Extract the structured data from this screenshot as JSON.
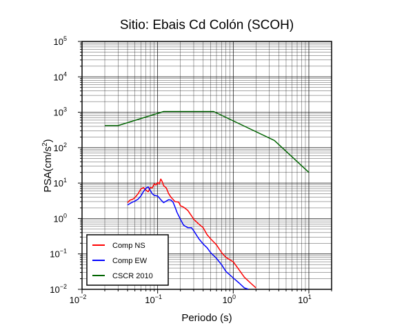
{
  "chart_data": {
    "type": "line",
    "title": "Sitio: Ebais Cd Colón (SCOH)",
    "xlabel": "Periodo (s)",
    "ylabel_base": "PSA(cm/s",
    "ylabel_sup": "2",
    "ylabel_end": ")",
    "xscale": "log",
    "yscale": "log",
    "xlim": [
      0.01,
      20
    ],
    "ylim": [
      0.01,
      100000
    ],
    "grid": true,
    "legend_position": "bottom-left",
    "x_ticks": [
      {
        "base": "10",
        "exp": "−2"
      },
      {
        "base": "10",
        "exp": "−1"
      },
      {
        "base": "10",
        "exp": "0"
      },
      {
        "base": "10",
        "exp": "1"
      }
    ],
    "y_ticks": [
      {
        "base": "10",
        "exp": "−2"
      },
      {
        "base": "10",
        "exp": "−1"
      },
      {
        "base": "10",
        "exp": "0"
      },
      {
        "base": "10",
        "exp": "1"
      },
      {
        "base": "10",
        "exp": "2"
      },
      {
        "base": "10",
        "exp": "3"
      },
      {
        "base": "10",
        "exp": "4"
      },
      {
        "base": "10",
        "exp": "5"
      }
    ],
    "series": [
      {
        "name": "Comp NS",
        "color": "#ff0000",
        "x": [
          0.04,
          0.043,
          0.047,
          0.05,
          0.055,
          0.06,
          0.065,
          0.07,
          0.075,
          0.08,
          0.085,
          0.09,
          0.095,
          0.1,
          0.105,
          0.11,
          0.115,
          0.12,
          0.13,
          0.14,
          0.15,
          0.17,
          0.19,
          0.2,
          0.22,
          0.25,
          0.28,
          0.3,
          0.35,
          0.4,
          0.45,
          0.5,
          0.6,
          0.7,
          0.8,
          1.0,
          1.2,
          1.4,
          1.7,
          2.0
        ],
        "y": [
          2.8,
          3.3,
          3.5,
          3.9,
          5.0,
          6.8,
          7.5,
          6.3,
          5.7,
          7.5,
          7.3,
          9.5,
          8.8,
          10.5,
          9.5,
          13.0,
          11.0,
          8.5,
          7.3,
          5.0,
          4.0,
          3.0,
          2.9,
          2.3,
          2.1,
          1.7,
          1.2,
          0.95,
          0.7,
          0.55,
          0.35,
          0.27,
          0.18,
          0.11,
          0.08,
          0.06,
          0.035,
          0.022,
          0.015,
          0.011
        ]
      },
      {
        "name": "Comp EW",
        "color": "#0000ff",
        "x": [
          0.04,
          0.045,
          0.05,
          0.055,
          0.06,
          0.065,
          0.07,
          0.075,
          0.08,
          0.085,
          0.09,
          0.1,
          0.11,
          0.12,
          0.13,
          0.14,
          0.15,
          0.16,
          0.17,
          0.18,
          0.2,
          0.22,
          0.25,
          0.28,
          0.3,
          0.35,
          0.4,
          0.45,
          0.5,
          0.6,
          0.7,
          0.8,
          1.0,
          1.2,
          1.4,
          1.6
        ],
        "y": [
          2.4,
          2.8,
          3.1,
          3.5,
          4.3,
          5.8,
          7.2,
          7.8,
          6.2,
          5.0,
          4.5,
          4.3,
          3.4,
          2.8,
          3.1,
          3.4,
          3.3,
          2.9,
          2.1,
          1.5,
          0.95,
          0.65,
          0.55,
          0.55,
          0.45,
          0.27,
          0.19,
          0.15,
          0.11,
          0.075,
          0.05,
          0.032,
          0.021,
          0.015,
          0.011,
          0.01
        ]
      },
      {
        "name": "CSCR 2010",
        "color": "#006400",
        "x": [
          0.02,
          0.03,
          0.12,
          0.55,
          3.5,
          10
        ],
        "y": [
          420,
          420,
          1050,
          1050,
          160,
          20
        ]
      }
    ]
  }
}
